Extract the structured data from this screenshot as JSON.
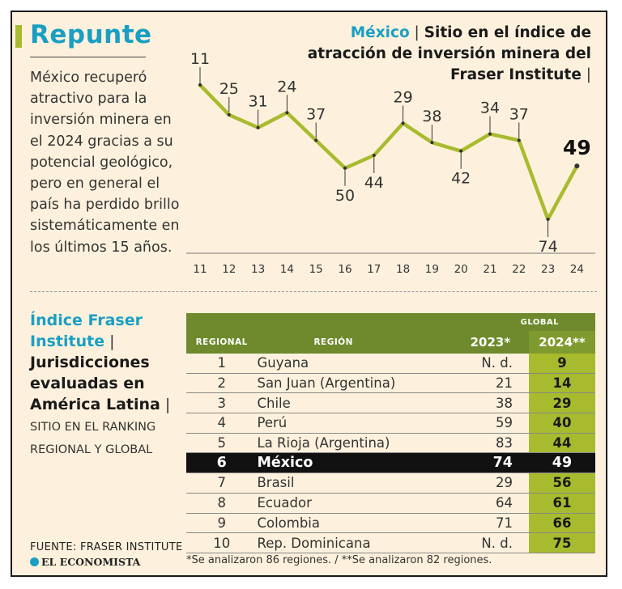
{
  "header": {
    "headline": "Repunte",
    "lead": "México recuperó atractivo para la inversión minera en el 2024 gracias a su potencial geológico, pero en general el país ha perdido brillo sistemáticamente en los últimos 15 años."
  },
  "chart_title": {
    "accent": "México",
    "sep1": " | ",
    "main": "Sitio en el índice de atracción de inversión minera del Fraser Institute",
    "sep2": " |"
  },
  "chart_data": {
    "type": "line",
    "x": [
      "11",
      "12",
      "13",
      "14",
      "15",
      "16",
      "17",
      "18",
      "19",
      "20",
      "21",
      "22",
      "23",
      "24"
    ],
    "values": [
      11,
      25,
      31,
      24,
      37,
      50,
      44,
      29,
      38,
      42,
      34,
      37,
      74,
      49
    ],
    "y_inverted": true,
    "highlight_last": true,
    "color": "#a8bb2e"
  },
  "index_section": {
    "title_accent": "Índice Fraser Institute",
    "sep": " | ",
    "title_main": "Jurisdicciones evaluadas en América Latina",
    "sep2": " | ",
    "subtitle": "SITIO EN EL RANKING REGIONAL Y GLOBAL"
  },
  "table": {
    "global_label": "GLOBAL",
    "headers": [
      "REGIONAL",
      "REGIÓN",
      "2023*",
      "2024**"
    ],
    "rows": [
      {
        "rank": "1",
        "region": "Guyana",
        "y2023": "N. d.",
        "y2024": "9"
      },
      {
        "rank": "2",
        "region": "San Juan (Argentina)",
        "y2023": "21",
        "y2024": "14"
      },
      {
        "rank": "3",
        "region": "Chile",
        "y2023": "38",
        "y2024": "29"
      },
      {
        "rank": "4",
        "region": "Perú",
        "y2023": "59",
        "y2024": "40"
      },
      {
        "rank": "5",
        "region": "La Rioja (Argentina)",
        "y2023": "83",
        "y2024": "44"
      },
      {
        "rank": "6",
        "region": "México",
        "y2023": "74",
        "y2024": "49"
      },
      {
        "rank": "7",
        "region": "Brasil",
        "y2023": "29",
        "y2024": "56"
      },
      {
        "rank": "8",
        "region": "Ecuador",
        "y2023": "64",
        "y2024": "61"
      },
      {
        "rank": "9",
        "region": "Colombia",
        "y2023": "71",
        "y2024": "66"
      },
      {
        "rank": "10",
        "region": "Rep. Dominicana",
        "y2023": "N. d.",
        "y2024": "75"
      }
    ],
    "highlight_region": "México"
  },
  "footnote": "*Se analizaron 86 regiones. / **Se analizaron 82 regiones.",
  "source": "FUENTE: FRASER INSTITUTE",
  "brand": "EL ECONOMISTA",
  "colors": {
    "accent_blue": "#1a9fc4",
    "accent_green": "#a8bb2e",
    "background": "#fdf1dd"
  }
}
